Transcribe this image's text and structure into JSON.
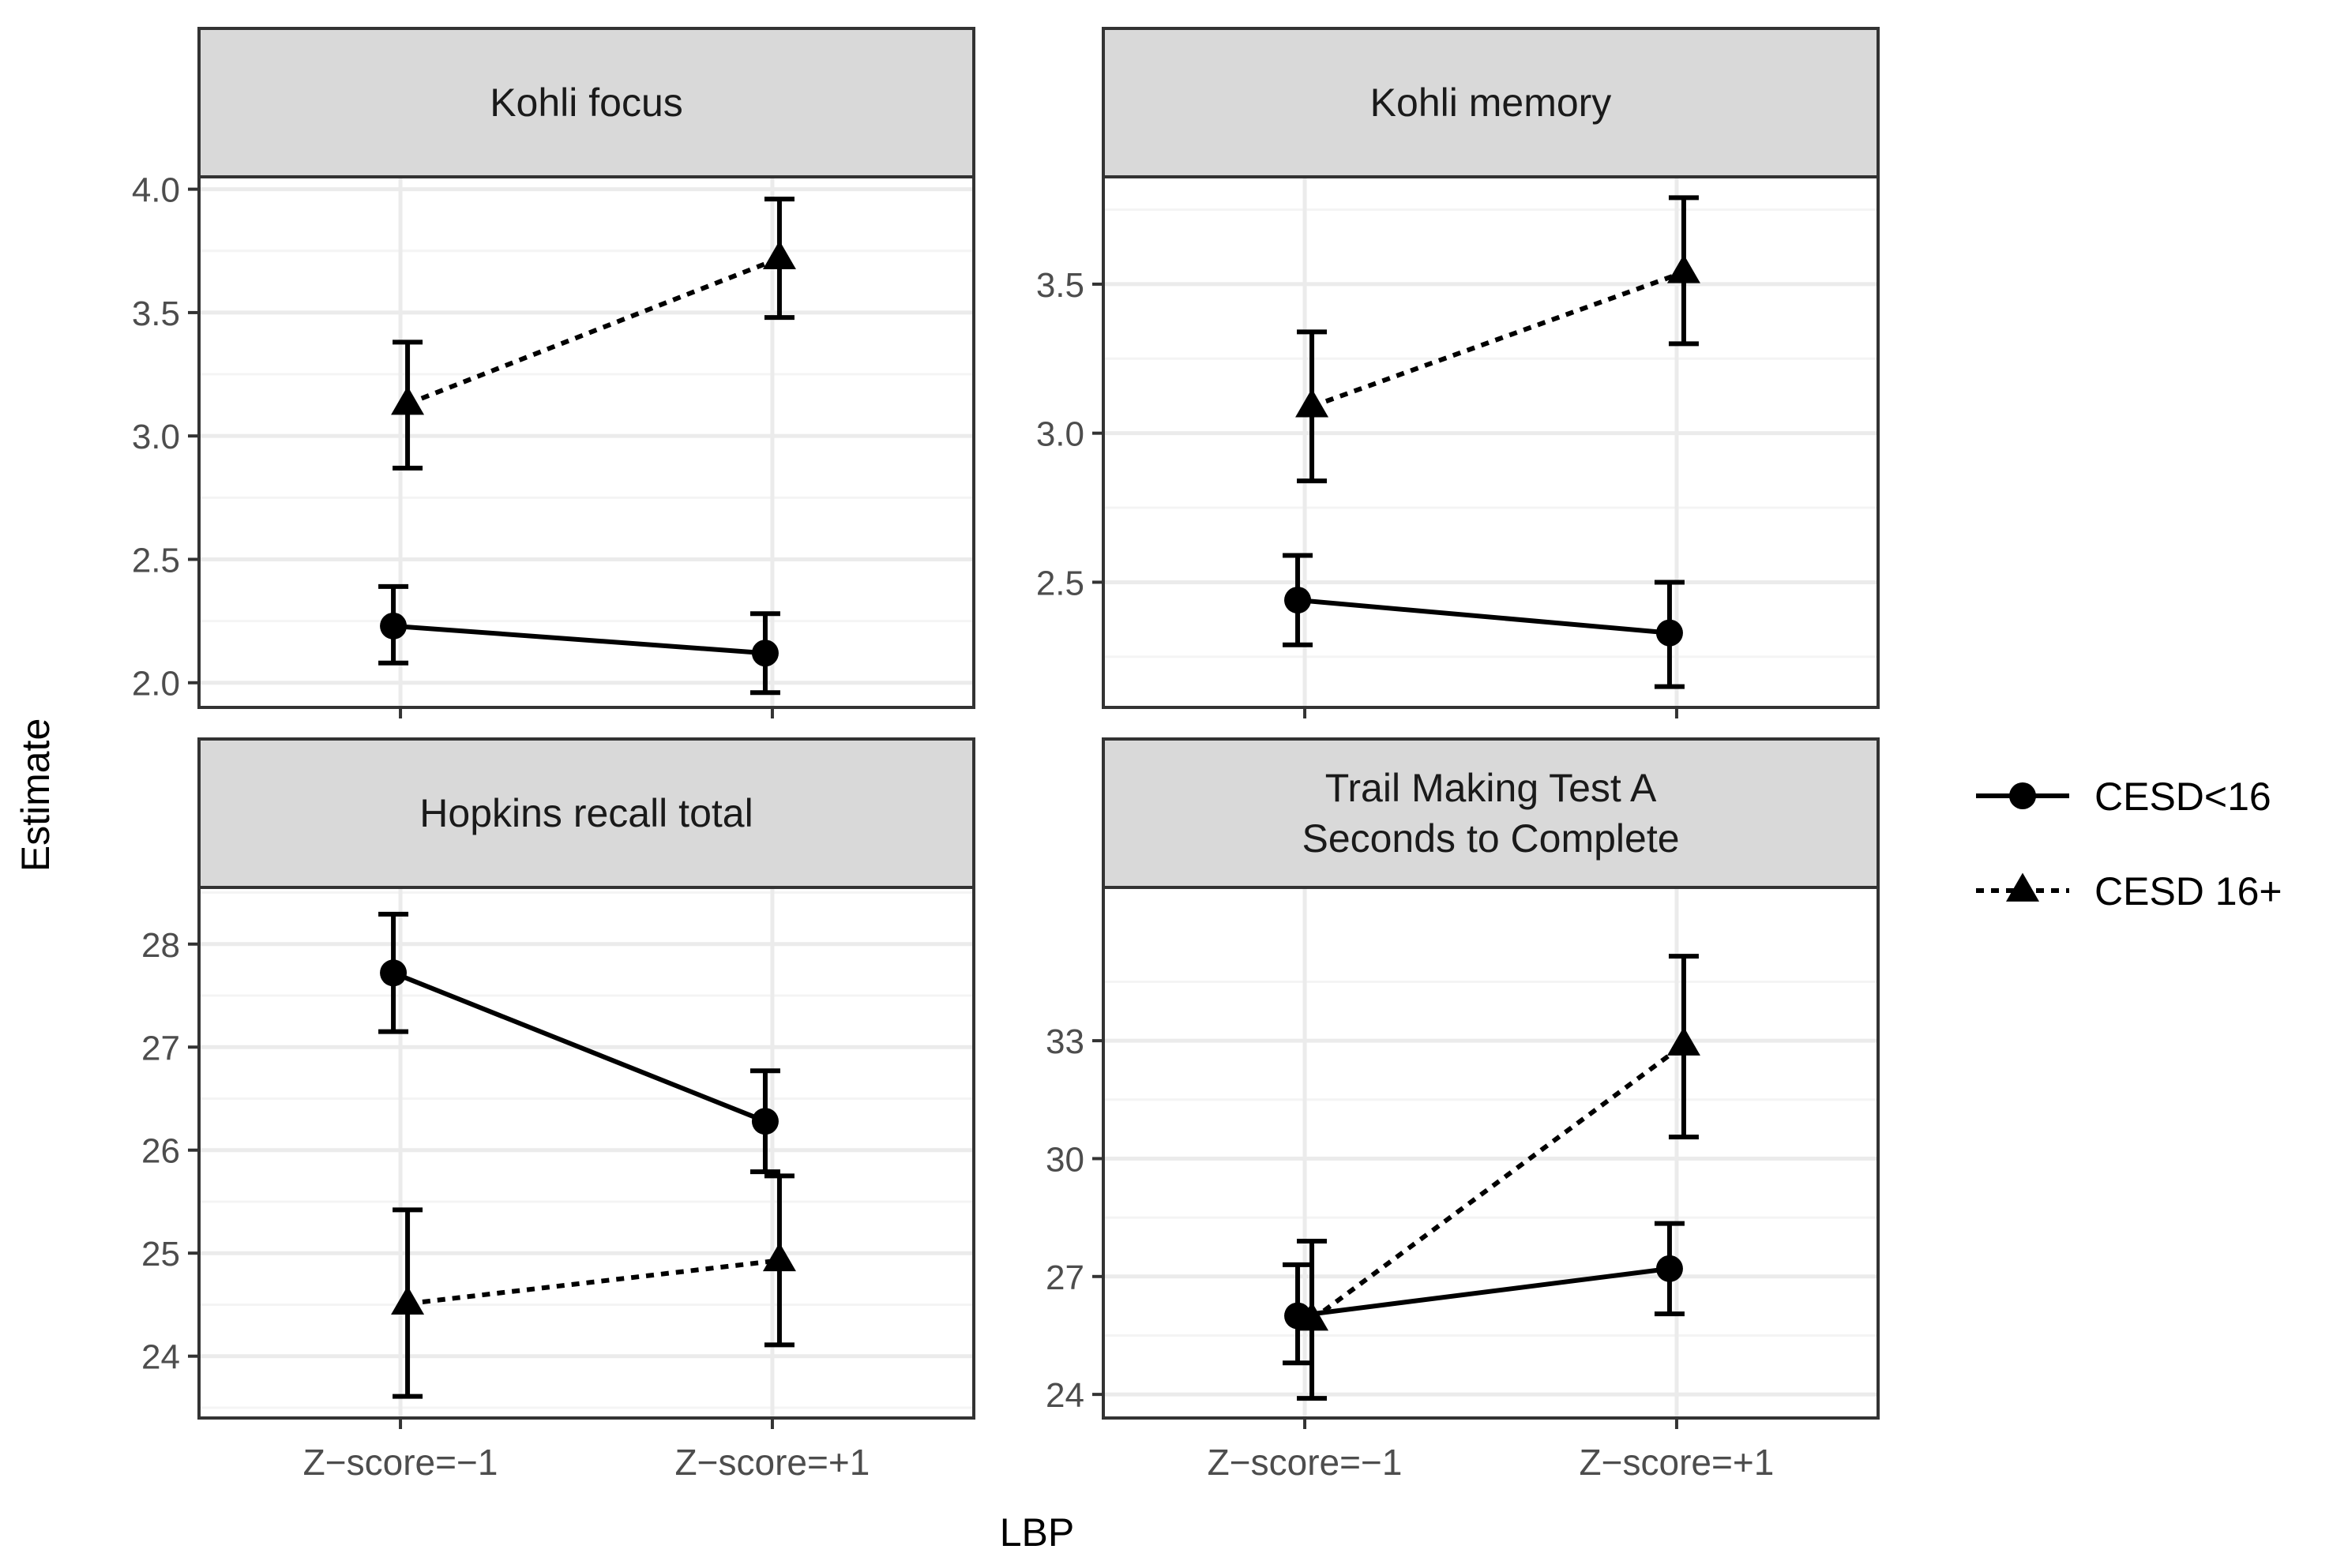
{
  "figure": {
    "ylabel": "Estimate",
    "xlabel": "LBP",
    "legend": [
      {
        "label": "CESD<16",
        "shape": "circle",
        "line": "solid"
      },
      {
        "label": "CESD 16+",
        "shape": "triangle",
        "line": "dotted"
      }
    ],
    "legend_position": "right"
  },
  "colors": {
    "strip_fill": "#d9d9d9",
    "panel_border": "#333333",
    "grid_major": "#ebebeb",
    "grid_minor": "#f4f4f4",
    "ink": "#000000",
    "tick_text": "#4d4d4d"
  },
  "chart_data": [
    {
      "type": "line",
      "title": "Kohli focus",
      "categories": [
        "Z−score=−1",
        "Z−score=+1"
      ],
      "ylim": [
        1.9,
        4.05
      ],
      "yticks": [
        2.0,
        2.5,
        3.0,
        3.5,
        4.0
      ],
      "ytick_labels": [
        "2.0",
        "2.5",
        "3.0",
        "3.5",
        "4.0"
      ],
      "show_x_labels": false,
      "series": [
        {
          "name": "CESD<16",
          "values": [
            2.23,
            2.12
          ],
          "lower": [
            2.08,
            1.96
          ],
          "upper": [
            2.39,
            2.28
          ]
        },
        {
          "name": "CESD 16+",
          "values": [
            3.13,
            3.72
          ],
          "lower": [
            2.87,
            3.48
          ],
          "upper": [
            3.38,
            3.96
          ]
        }
      ]
    },
    {
      "type": "line",
      "title": "Kohli memory",
      "categories": [
        "Z−score=−1",
        "Z−score=+1"
      ],
      "ylim": [
        2.08,
        3.86
      ],
      "yticks": [
        2.5,
        3.0,
        3.5
      ],
      "ytick_labels": [
        "2.5",
        "3.0",
        "3.5"
      ],
      "show_x_labels": false,
      "series": [
        {
          "name": "CESD<16",
          "values": [
            2.44,
            2.33
          ],
          "lower": [
            2.29,
            2.15
          ],
          "upper": [
            2.59,
            2.5
          ]
        },
        {
          "name": "CESD 16+",
          "values": [
            3.09,
            3.54
          ],
          "lower": [
            2.84,
            3.3
          ],
          "upper": [
            3.34,
            3.79
          ]
        }
      ]
    },
    {
      "type": "line",
      "title": "Hopkins recall total",
      "categories": [
        "Z−score=−1",
        "Z−score=+1"
      ],
      "ylim": [
        23.4,
        28.55
      ],
      "yticks": [
        24,
        25,
        26,
        27,
        28
      ],
      "ytick_labels": [
        "24",
        "25",
        "26",
        "27",
        "28"
      ],
      "show_x_labels": true,
      "series": [
        {
          "name": "CESD<16",
          "values": [
            27.72,
            26.28
          ],
          "lower": [
            27.15,
            25.79
          ],
          "upper": [
            28.29,
            26.77
          ]
        },
        {
          "name": "CESD 16+",
          "values": [
            24.51,
            24.93
          ],
          "lower": [
            23.61,
            24.11
          ],
          "upper": [
            25.42,
            25.75
          ]
        }
      ]
    },
    {
      "type": "line",
      "title": "Trail Making Test A\nSeconds to Complete",
      "categories": [
        "Z−score=−1",
        "Z−score=+1"
      ],
      "ylim": [
        23.4,
        36.9
      ],
      "yticks": [
        24,
        27,
        30,
        33
      ],
      "ytick_labels": [
        "24",
        "27",
        "30",
        "33"
      ],
      "show_x_labels": true,
      "series": [
        {
          "name": "CESD<16",
          "values": [
            26.0,
            27.2
          ],
          "lower": [
            24.8,
            26.05
          ],
          "upper": [
            27.3,
            28.35
          ]
        },
        {
          "name": "CESD 16+",
          "values": [
            25.9,
            32.9
          ],
          "lower": [
            23.9,
            30.55
          ],
          "upper": [
            27.9,
            35.15
          ]
        }
      ]
    }
  ]
}
